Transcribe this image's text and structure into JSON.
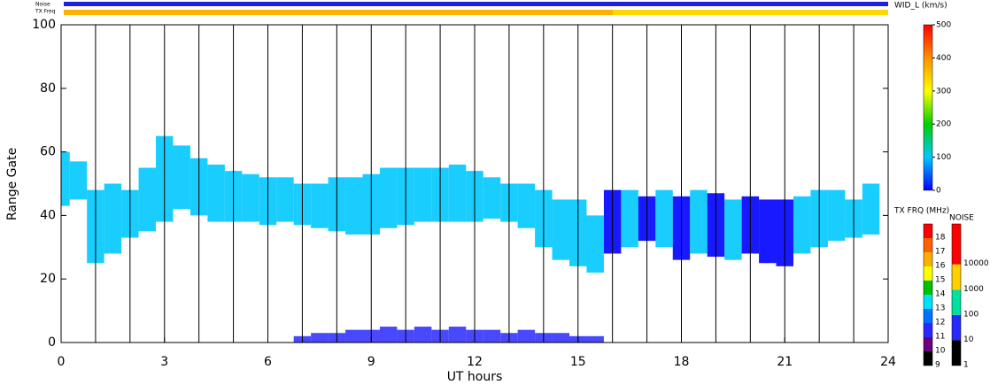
{
  "chart_data": {
    "type": "range_time",
    "top_labels": [
      "Noise",
      "TX Freq"
    ],
    "xlabel": "UT hours",
    "ylabel": "Range Gate",
    "xlim": [
      0,
      24
    ],
    "xticks": [
      0,
      3,
      6,
      9,
      12,
      15,
      18,
      21,
      24
    ],
    "hour_lines": [
      1,
      2,
      3,
      4,
      5,
      6,
      7,
      8,
      9,
      10,
      11,
      12,
      13,
      14,
      15,
      16,
      17,
      18,
      19,
      20,
      21,
      22,
      23
    ],
    "ylim": [
      0,
      100
    ],
    "yticks": [
      0,
      20,
      40,
      60,
      80,
      100
    ],
    "band_width": 0.5,
    "x": [
      0,
      0.5,
      1,
      1.5,
      2,
      2.5,
      3,
      3.5,
      4,
      4.5,
      5,
      5.5,
      6,
      6.5,
      7,
      7.5,
      8,
      8.5,
      9,
      9.5,
      10,
      10.5,
      11,
      11.5,
      12,
      12.5,
      13,
      13.5,
      14,
      14.5,
      15,
      15.5,
      16,
      16.5,
      17,
      17.5,
      18,
      18.5,
      19,
      19.5,
      20,
      20.5,
      21,
      21.5,
      22,
      22.5,
      23,
      23.5
    ],
    "low": [
      43,
      45,
      25,
      28,
      33,
      35,
      38,
      42,
      40,
      38,
      38,
      38,
      37,
      38,
      37,
      36,
      35,
      34,
      34,
      36,
      37,
      38,
      38,
      38,
      38,
      39,
      38,
      36,
      30,
      26,
      24,
      22,
      28,
      30,
      32,
      30,
      26,
      28,
      27,
      26,
      28,
      25,
      24,
      28,
      30,
      32,
      33,
      34
    ],
    "high": [
      60,
      57,
      48,
      50,
      48,
      55,
      65,
      62,
      58,
      56,
      54,
      53,
      52,
      52,
      50,
      50,
      52,
      52,
      53,
      55,
      55,
      55,
      55,
      56,
      54,
      52,
      50,
      50,
      48,
      45,
      45,
      40,
      48,
      48,
      46,
      48,
      46,
      48,
      47,
      45,
      46,
      45,
      45,
      46,
      48,
      48,
      45,
      50
    ],
    "width": [
      80,
      70,
      60,
      90,
      80,
      110,
      120,
      100,
      90,
      100,
      90,
      100,
      80,
      90,
      80,
      90,
      80,
      70,
      80,
      90,
      100,
      90,
      100,
      110,
      90,
      80,
      80,
      70,
      60,
      60,
      50,
      60,
      40,
      50,
      40,
      50,
      40,
      50,
      40,
      50,
      40,
      40,
      40,
      50,
      50,
      60,
      70,
      80
    ],
    "near_x": [
      7,
      7.5,
      8,
      8.5,
      9,
      9.5,
      10,
      10.5,
      11,
      11.5,
      12,
      12.5,
      13,
      13.5,
      14,
      14.5,
      15,
      15.5
    ],
    "near_high": [
      2,
      3,
      3,
      4,
      4,
      5,
      4,
      5,
      4,
      5,
      4,
      4,
      3,
      4,
      3,
      3,
      2,
      2
    ],
    "width_colorbar": {
      "title": "WID_L (km/s)",
      "lim": [
        0,
        500
      ],
      "ticks": [
        0,
        100,
        200,
        300,
        400,
        500
      ],
      "colors": [
        "#0000ff",
        "#00c8ff",
        "#00d000",
        "#ffff00",
        "#ff9000",
        "#ff0000"
      ]
    },
    "freq_colorbar": {
      "title": "TX FRQ (MHz)",
      "ticks": [
        9,
        10,
        11,
        12,
        13,
        14,
        15,
        16,
        17,
        18
      ],
      "colors": [
        "#000000",
        "#6a0080",
        "#2828ff",
        "#0070ff",
        "#00e0ff",
        "#00c000",
        "#ffff00",
        "#ffb000",
        "#ff6000",
        "#ff0000"
      ]
    },
    "noise_colorbar": {
      "title": "NOISE",
      "log": true,
      "lim": [
        1,
        398107
      ],
      "ticks": [
        1,
        10,
        100,
        1000,
        10000
      ],
      "colors": [
        "#000000",
        "#2828ff",
        "#00e0a0",
        "#ffd000",
        "#ff0000",
        "#ff0000"
      ]
    }
  }
}
